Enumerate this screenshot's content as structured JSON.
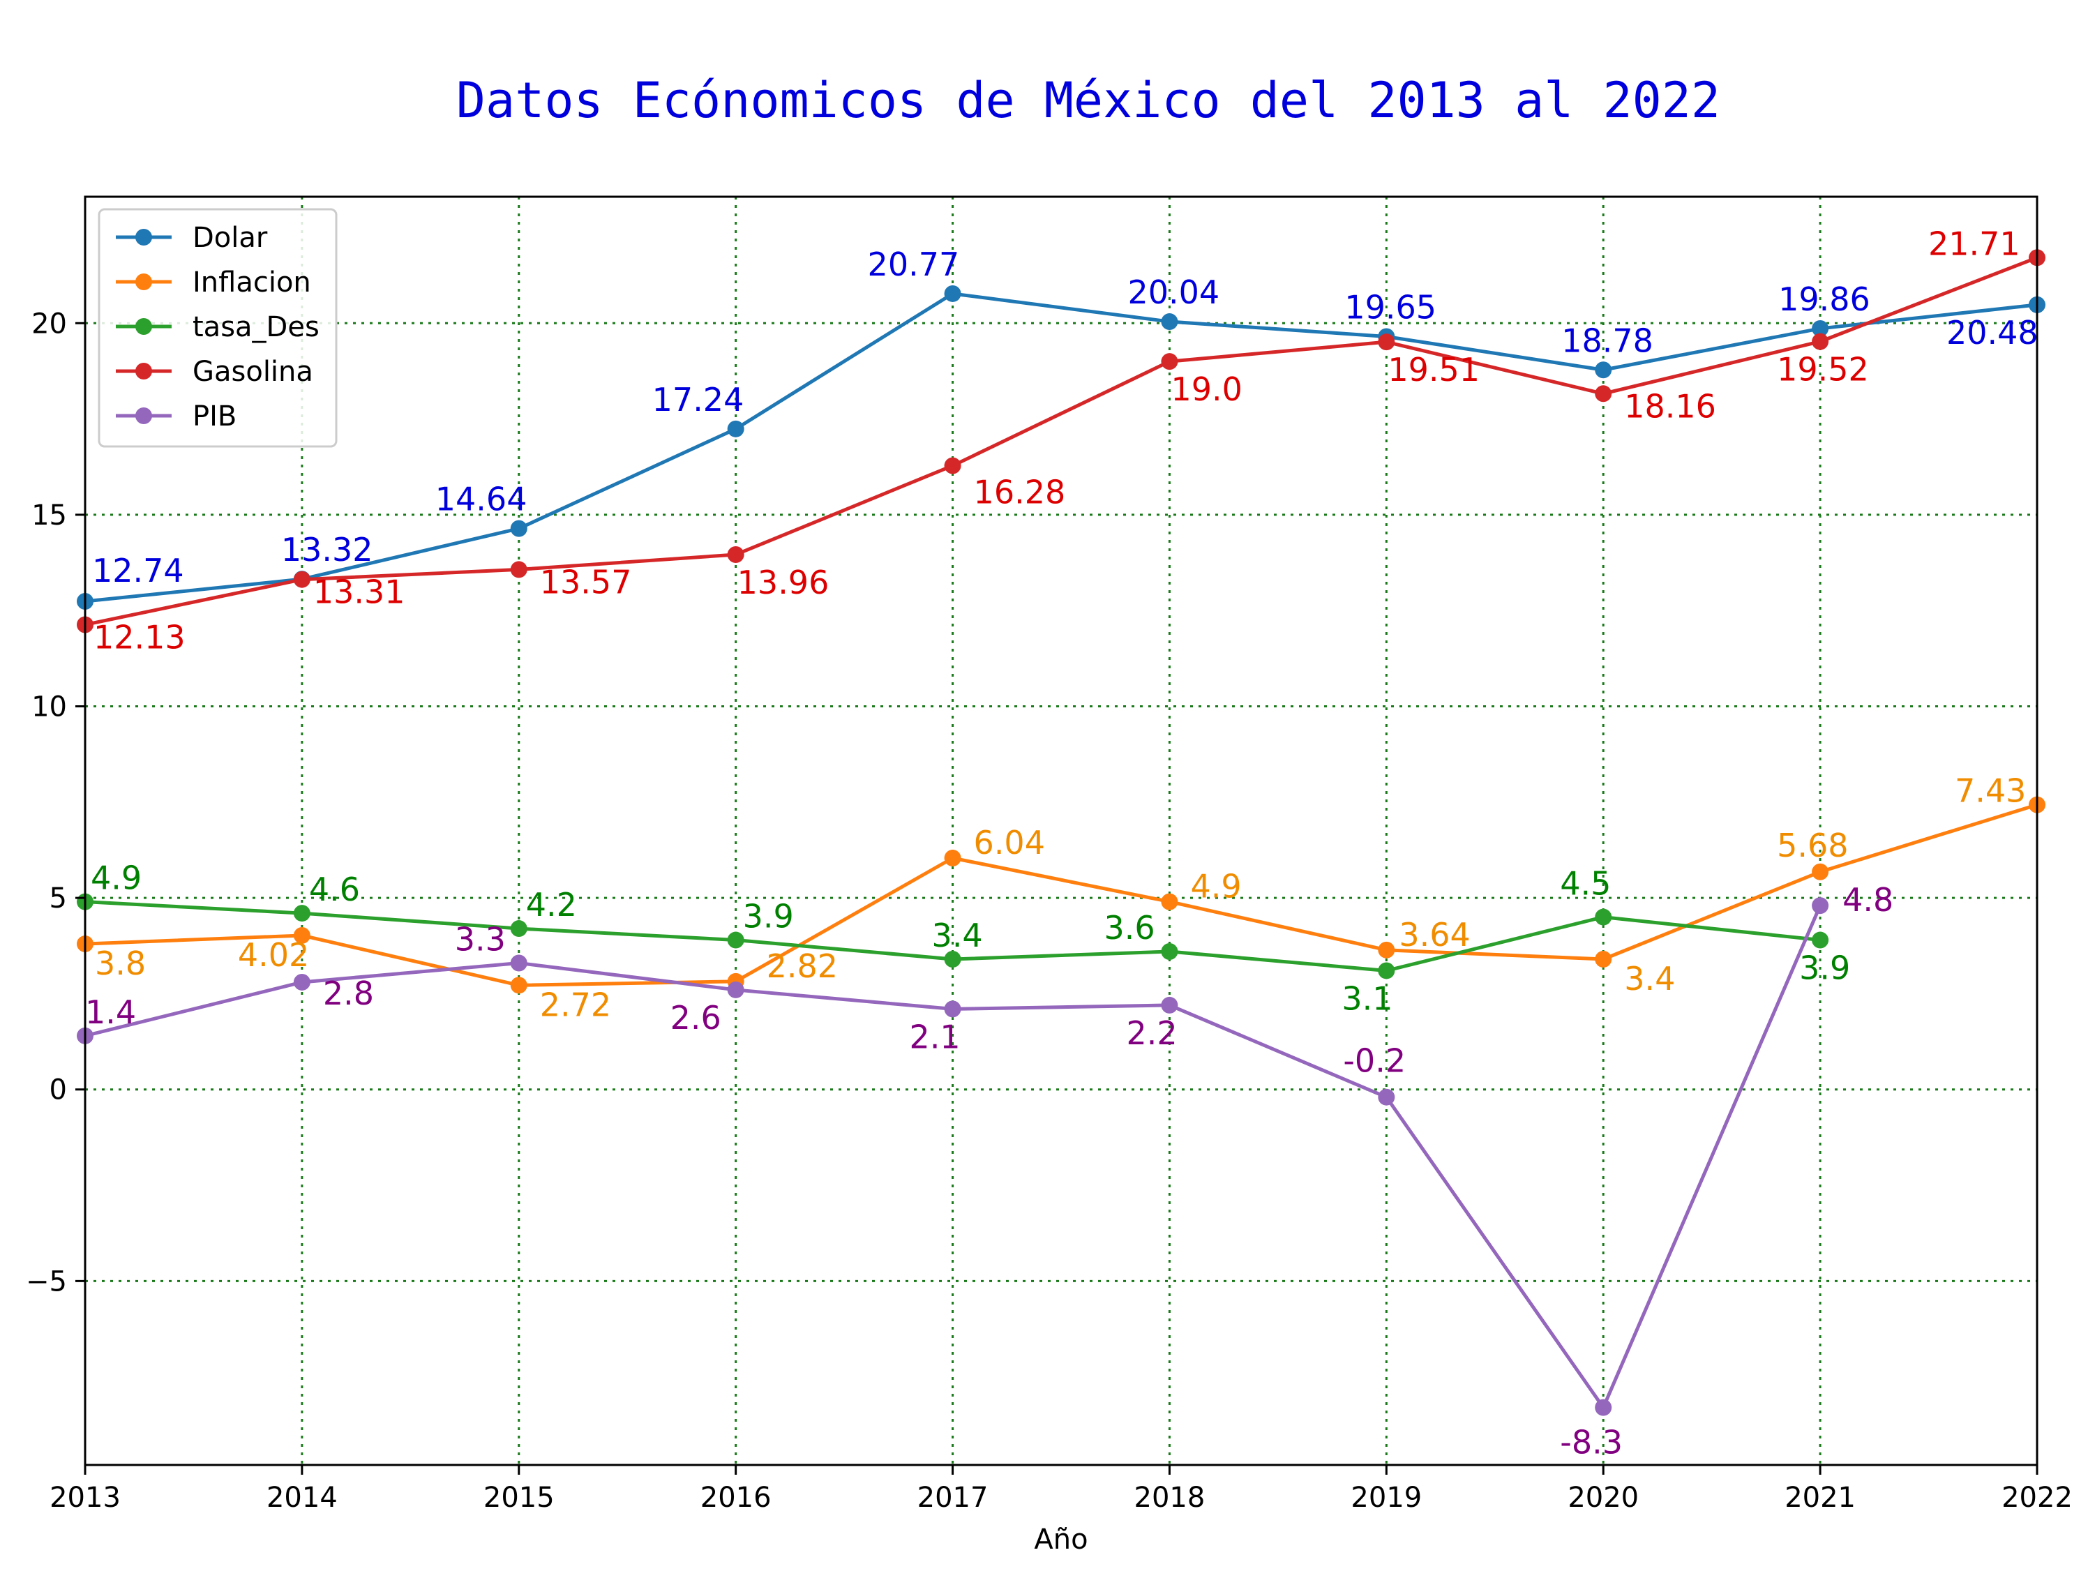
{
  "chart_data": {
    "type": "line",
    "title": "Datos Ecónomicos de México del 2013 al 2022",
    "xlabel": "Año",
    "ylabel": "",
    "x": [
      2013,
      2014,
      2015,
      2016,
      2017,
      2018,
      2019,
      2020,
      2021,
      2022
    ],
    "xlim": [
      2013,
      2022
    ],
    "ylim": [
      -9.8,
      23.3
    ],
    "x_ticks": [
      "2013",
      "2014",
      "2015",
      "2016",
      "2017",
      "2018",
      "2019",
      "2020",
      "2021",
      "2022"
    ],
    "y_ticks": [
      {
        "value": -5,
        "label": "−5"
      },
      {
        "value": 0,
        "label": "0"
      },
      {
        "value": 5,
        "label": "5"
      },
      {
        "value": 10,
        "label": "10"
      },
      {
        "value": 15,
        "label": "15"
      },
      {
        "value": 20,
        "label": "20"
      }
    ],
    "grid": true,
    "legend_position": "top-left",
    "series": [
      {
        "name": "Dolar",
        "color": "#1f77b4",
        "label_color": "#0000dd",
        "values": [
          12.74,
          13.32,
          14.64,
          17.24,
          20.77,
          20.04,
          19.65,
          18.78,
          19.86,
          20.48
        ],
        "labels": [
          "12.74",
          "13.32",
          "14.64",
          "17.24",
          "20.77",
          "20.04",
          "19.65",
          "18.78",
          "19.86",
          "20.48"
        ]
      },
      {
        "name": "Inflacion",
        "color": "#ff7f0e",
        "label_color": "#f08c00",
        "values": [
          3.8,
          4.02,
          2.72,
          2.82,
          6.04,
          4.9,
          3.64,
          3.4,
          5.68,
          7.43
        ],
        "labels": [
          "3.8",
          "4.02",
          "2.72",
          "2.82",
          "6.04",
          "4.9",
          "3.64",
          "3.4",
          "5.68",
          "7.43"
        ]
      },
      {
        "name": "tasa_Des",
        "color": "#2ca02c",
        "label_color": "#008000",
        "values": [
          4.9,
          4.6,
          4.2,
          3.9,
          3.4,
          3.6,
          3.1,
          4.5,
          3.9,
          null
        ],
        "labels": [
          "4.9",
          "4.6",
          "4.2",
          "3.9",
          "3.4",
          "3.6",
          "3.1",
          "4.5",
          "3.9",
          null
        ]
      },
      {
        "name": "Gasolina",
        "color": "#d62728",
        "label_color": "#dd0000",
        "values": [
          12.13,
          13.31,
          13.57,
          13.96,
          16.28,
          19.0,
          19.51,
          18.16,
          19.52,
          21.71
        ],
        "labels": [
          "12.13",
          "13.31",
          "13.57",
          "13.96",
          "16.28",
          "19.0",
          "19.51",
          "18.16",
          "19.52",
          "21.71"
        ]
      },
      {
        "name": "PIB",
        "color": "#9467bd",
        "label_color": "#800080",
        "values": [
          1.4,
          2.8,
          3.3,
          2.6,
          2.1,
          2.2,
          -0.2,
          -8.3,
          4.8,
          null
        ],
        "labels": [
          "1.4",
          "2.8",
          "3.3",
          "2.6",
          "2.1",
          "2.2",
          "-0.2",
          "-8.3",
          "4.8",
          null
        ]
      }
    ]
  }
}
